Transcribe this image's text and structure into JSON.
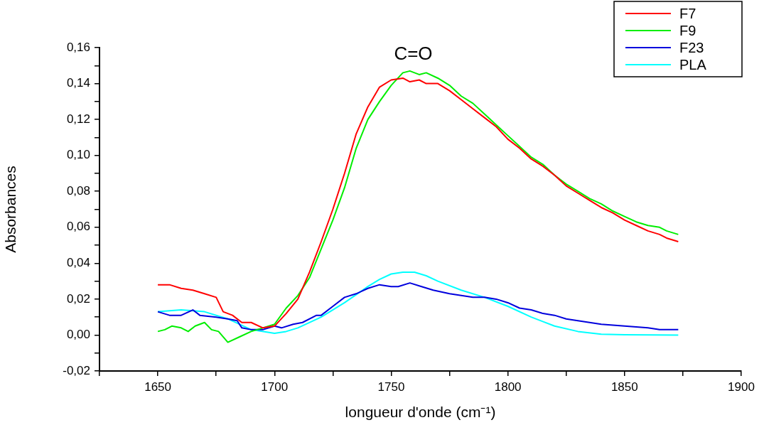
{
  "chart_data": {
    "type": "line",
    "xlabel": "longueur d'onde (cm⁻¹)",
    "ylabel": "Absorbances",
    "annotations": [
      "C=O"
    ],
    "xlim": [
      1625,
      1900
    ],
    "xticks": [
      {
        "value": 1625,
        "label": null
      },
      1650,
      {
        "value": 1675,
        "label": null
      },
      1700,
      {
        "value": 1725,
        "label": null
      },
      1750,
      {
        "value": 1775,
        "label": null
      },
      1800,
      {
        "value": 1825,
        "label": null
      },
      1850,
      {
        "value": 1875,
        "label": null
      },
      1900
    ],
    "ylim": [
      -0.02,
      0.16
    ],
    "yticks": [
      {
        "value": -0.02,
        "label": "-0,02"
      },
      {
        "value": -0.01,
        "label": null
      },
      {
        "value": 0,
        "label": "0,00"
      },
      {
        "value": 0.01,
        "label": null
      },
      {
        "value": 0.02,
        "label": "0,02"
      },
      {
        "value": 0.03,
        "label": null
      },
      {
        "value": 0.04,
        "label": "0,04"
      },
      {
        "value": 0.05,
        "label": null
      },
      {
        "value": 0.06,
        "label": "0,06"
      },
      {
        "value": 0.07,
        "label": null
      },
      {
        "value": 0.08,
        "label": "0,08"
      },
      {
        "value": 0.09,
        "label": null
      },
      {
        "value": 0.1,
        "label": "0,10"
      },
      {
        "value": 0.11,
        "label": null
      },
      {
        "value": 0.12,
        "label": "0,12"
      },
      {
        "value": 0.13,
        "label": null
      },
      {
        "value": 0.14,
        "label": "0,14"
      },
      {
        "value": 0.15,
        "label": null
      },
      {
        "value": 0.16,
        "label": "0,16"
      }
    ],
    "legend": "top right",
    "marker": "none",
    "line_style": "solid",
    "series": [
      {
        "name": "F7",
        "color": "#ff0000",
        "x": [
          1650,
          1655,
          1660,
          1665,
          1670,
          1675,
          1678,
          1682,
          1686,
          1690,
          1695,
          1700,
          1705,
          1710,
          1715,
          1720,
          1725,
          1730,
          1735,
          1740,
          1745,
          1750,
          1755,
          1758,
          1762,
          1765,
          1770,
          1775,
          1780,
          1785,
          1790,
          1795,
          1800,
          1805,
          1810,
          1815,
          1820,
          1825,
          1830,
          1835,
          1840,
          1845,
          1850,
          1855,
          1860,
          1865,
          1868,
          1873
        ],
        "values": [
          0.028,
          0.028,
          0.026,
          0.025,
          0.023,
          0.021,
          0.013,
          0.011,
          0.007,
          0.007,
          0.004,
          0.005,
          0.012,
          0.02,
          0.035,
          0.052,
          0.07,
          0.09,
          0.112,
          0.127,
          0.138,
          0.142,
          0.143,
          0.141,
          0.142,
          0.14,
          0.14,
          0.136,
          0.131,
          0.126,
          0.121,
          0.116,
          0.109,
          0.104,
          0.098,
          0.094,
          0.089,
          0.083,
          0.079,
          0.075,
          0.071,
          0.068,
          0.064,
          0.061,
          0.058,
          0.056,
          0.054,
          0.052
        ]
      },
      {
        "name": "F9",
        "color": "#00ee00",
        "x": [
          1650,
          1653,
          1656,
          1660,
          1663,
          1666,
          1670,
          1673,
          1676,
          1680,
          1685,
          1690,
          1695,
          1700,
          1705,
          1710,
          1715,
          1720,
          1725,
          1730,
          1735,
          1740,
          1745,
          1750,
          1755,
          1758,
          1762,
          1765,
          1770,
          1775,
          1780,
          1785,
          1790,
          1795,
          1800,
          1805,
          1810,
          1815,
          1820,
          1825,
          1830,
          1835,
          1840,
          1845,
          1850,
          1855,
          1860,
          1865,
          1868,
          1873
        ],
        "values": [
          0.002,
          0.003,
          0.005,
          0.004,
          0.002,
          0.005,
          0.007,
          0.003,
          0.002,
          -0.004,
          -0.001,
          0.002,
          0.004,
          0.006,
          0.015,
          0.022,
          0.032,
          0.048,
          0.064,
          0.082,
          0.104,
          0.12,
          0.13,
          0.139,
          0.146,
          0.147,
          0.145,
          0.146,
          0.143,
          0.139,
          0.133,
          0.129,
          0.123,
          0.117,
          0.111,
          0.105,
          0.099,
          0.095,
          0.089,
          0.084,
          0.08,
          0.076,
          0.073,
          0.069,
          0.066,
          0.063,
          0.061,
          0.06,
          0.058,
          0.056
        ]
      },
      {
        "name": "F23",
        "color": "#0000dd",
        "x": [
          1650,
          1655,
          1660,
          1665,
          1668,
          1675,
          1680,
          1684,
          1686,
          1690,
          1695,
          1700,
          1703,
          1708,
          1712,
          1718,
          1720,
          1725,
          1730,
          1735,
          1740,
          1745,
          1750,
          1753,
          1758,
          1763,
          1768,
          1775,
          1780,
          1785,
          1790,
          1795,
          1800,
          1805,
          1810,
          1815,
          1820,
          1825,
          1830,
          1840,
          1850,
          1860,
          1865,
          1873
        ],
        "values": [
          0.013,
          0.011,
          0.011,
          0.014,
          0.011,
          0.01,
          0.009,
          0.008,
          0.004,
          0.003,
          0.003,
          0.005,
          0.004,
          0.006,
          0.007,
          0.011,
          0.011,
          0.016,
          0.021,
          0.023,
          0.026,
          0.028,
          0.027,
          0.027,
          0.029,
          0.027,
          0.025,
          0.023,
          0.022,
          0.021,
          0.021,
          0.02,
          0.018,
          0.015,
          0.014,
          0.012,
          0.011,
          0.009,
          0.008,
          0.006,
          0.005,
          0.004,
          0.003,
          0.003
        ]
      },
      {
        "name": "PLA",
        "color": "#00ffff",
        "x": [
          1650,
          1660,
          1670,
          1680,
          1690,
          1700,
          1705,
          1710,
          1720,
          1730,
          1740,
          1745,
          1750,
          1755,
          1760,
          1765,
          1770,
          1780,
          1790,
          1800,
          1810,
          1820,
          1830,
          1840,
          1850,
          1873
        ],
        "values": [
          0.013,
          0.014,
          0.013,
          0.009,
          0.003,
          0.001,
          0.002,
          0.004,
          0.01,
          0.018,
          0.027,
          0.031,
          0.034,
          0.035,
          0.035,
          0.033,
          0.03,
          0.025,
          0.021,
          0.016,
          0.01,
          0.005,
          0.002,
          0.0005,
          0.0002,
          0
        ]
      }
    ]
  }
}
